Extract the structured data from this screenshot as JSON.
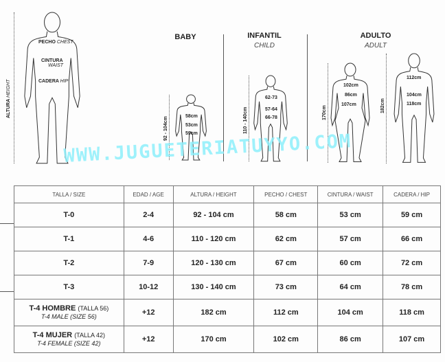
{
  "figure": {
    "generic": {
      "chest": "PECHO",
      "chest_en": "CHEST",
      "waist": "CINTURA",
      "waist_en": "WAIST",
      "hip": "CADERA",
      "hip_en": "HIP",
      "height": "ALTURA",
      "height_en": "HEIGHT"
    },
    "baby": {
      "title": "BABY",
      "height": "92 - 104cm",
      "chest": "58cm",
      "waist": "53cm",
      "hip": "59cm"
    },
    "child": {
      "title": "INFANTIL",
      "subtitle": "CHILD",
      "height": "110 - 140cm",
      "chest": "62-73",
      "waist": "57-64",
      "hip": "66-78"
    },
    "adult": {
      "title": "ADULTO",
      "subtitle": "ADULT",
      "female": {
        "height": "170cm",
        "chest": "102cm",
        "waist": "86cm",
        "hip": "107cm"
      },
      "male": {
        "height": "182cm",
        "chest": "112cm",
        "waist": "104cm",
        "hip": "118cm"
      }
    }
  },
  "watermark": "WWW.JUGUETERIATUYYO.COM",
  "table": {
    "headers": [
      "TALLA / SIZE",
      "EDAD / AGE",
      "ALTURA / HEIGHT",
      "PECHO / CHEST",
      "CINTURA / WAIST",
      "CADERA / HIP"
    ],
    "rows": [
      {
        "size": "T-0",
        "age": "2-4",
        "height": "92 - 104 cm",
        "chest": "58 cm",
        "waist": "53 cm",
        "hip": "59 cm"
      },
      {
        "size": "T-1",
        "age": "4-6",
        "height": "110 - 120 cm",
        "chest": "62 cm",
        "waist": "57 cm",
        "hip": "66 cm"
      },
      {
        "size": "T-2",
        "age": "7-9",
        "height": "120 - 130 cm",
        "chest": "67 cm",
        "waist": "60 cm",
        "hip": "72 cm"
      },
      {
        "size": "T-3",
        "age": "10-12",
        "height": "130 - 140 cm",
        "chest": "73 cm",
        "waist": "64 cm",
        "hip": "78 cm"
      },
      {
        "size": "T-4 HOMBRE",
        "size_note": "(TALLA 56)",
        "size_en": "T-4 MALE (SIZE 56)",
        "age": "+12",
        "height": "182 cm",
        "chest": "112 cm",
        "waist": "104 cm",
        "hip": "118 cm"
      },
      {
        "size": "T-4 MUJER",
        "size_note": "(TALLA 42)",
        "size_en": "T-4 FEMALE (SIZE 42)",
        "age": "+12",
        "height": "170 cm",
        "chest": "102 cm",
        "waist": "86 cm",
        "hip": "107 cm"
      }
    ]
  }
}
